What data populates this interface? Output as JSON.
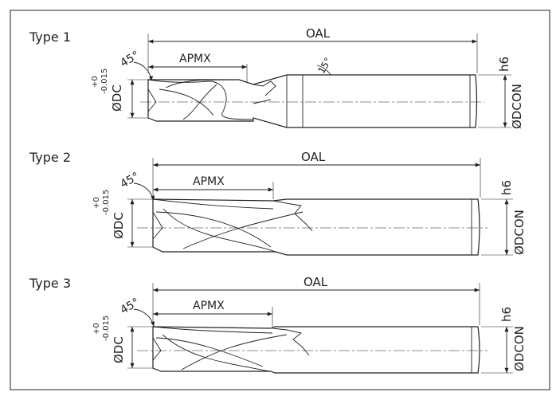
{
  "types": [
    {
      "label": "Type 1",
      "oal": "OAL",
      "apmx": "APMX",
      "angle": "45°",
      "helix": "15°",
      "tol_upper": "+0",
      "tol_lower": "-0.015",
      "dc": "ØDC",
      "shank_tol": "h6",
      "dcon": "ØDCON"
    },
    {
      "label": "Type 2",
      "oal": "OAL",
      "apmx": "APMX",
      "angle": "45°",
      "tol_upper": "+0",
      "tol_lower": "-0.015",
      "dc": "ØDC",
      "shank_tol": "h6",
      "dcon": "ØDCON"
    },
    {
      "label": "Type 3",
      "oal": "OAL",
      "apmx": "APMX",
      "angle": "45°",
      "tol_upper": "+0",
      "tol_lower": "-0.015",
      "dc": "ØDC",
      "shank_tol": "h6",
      "dcon": "ØDCON"
    }
  ]
}
